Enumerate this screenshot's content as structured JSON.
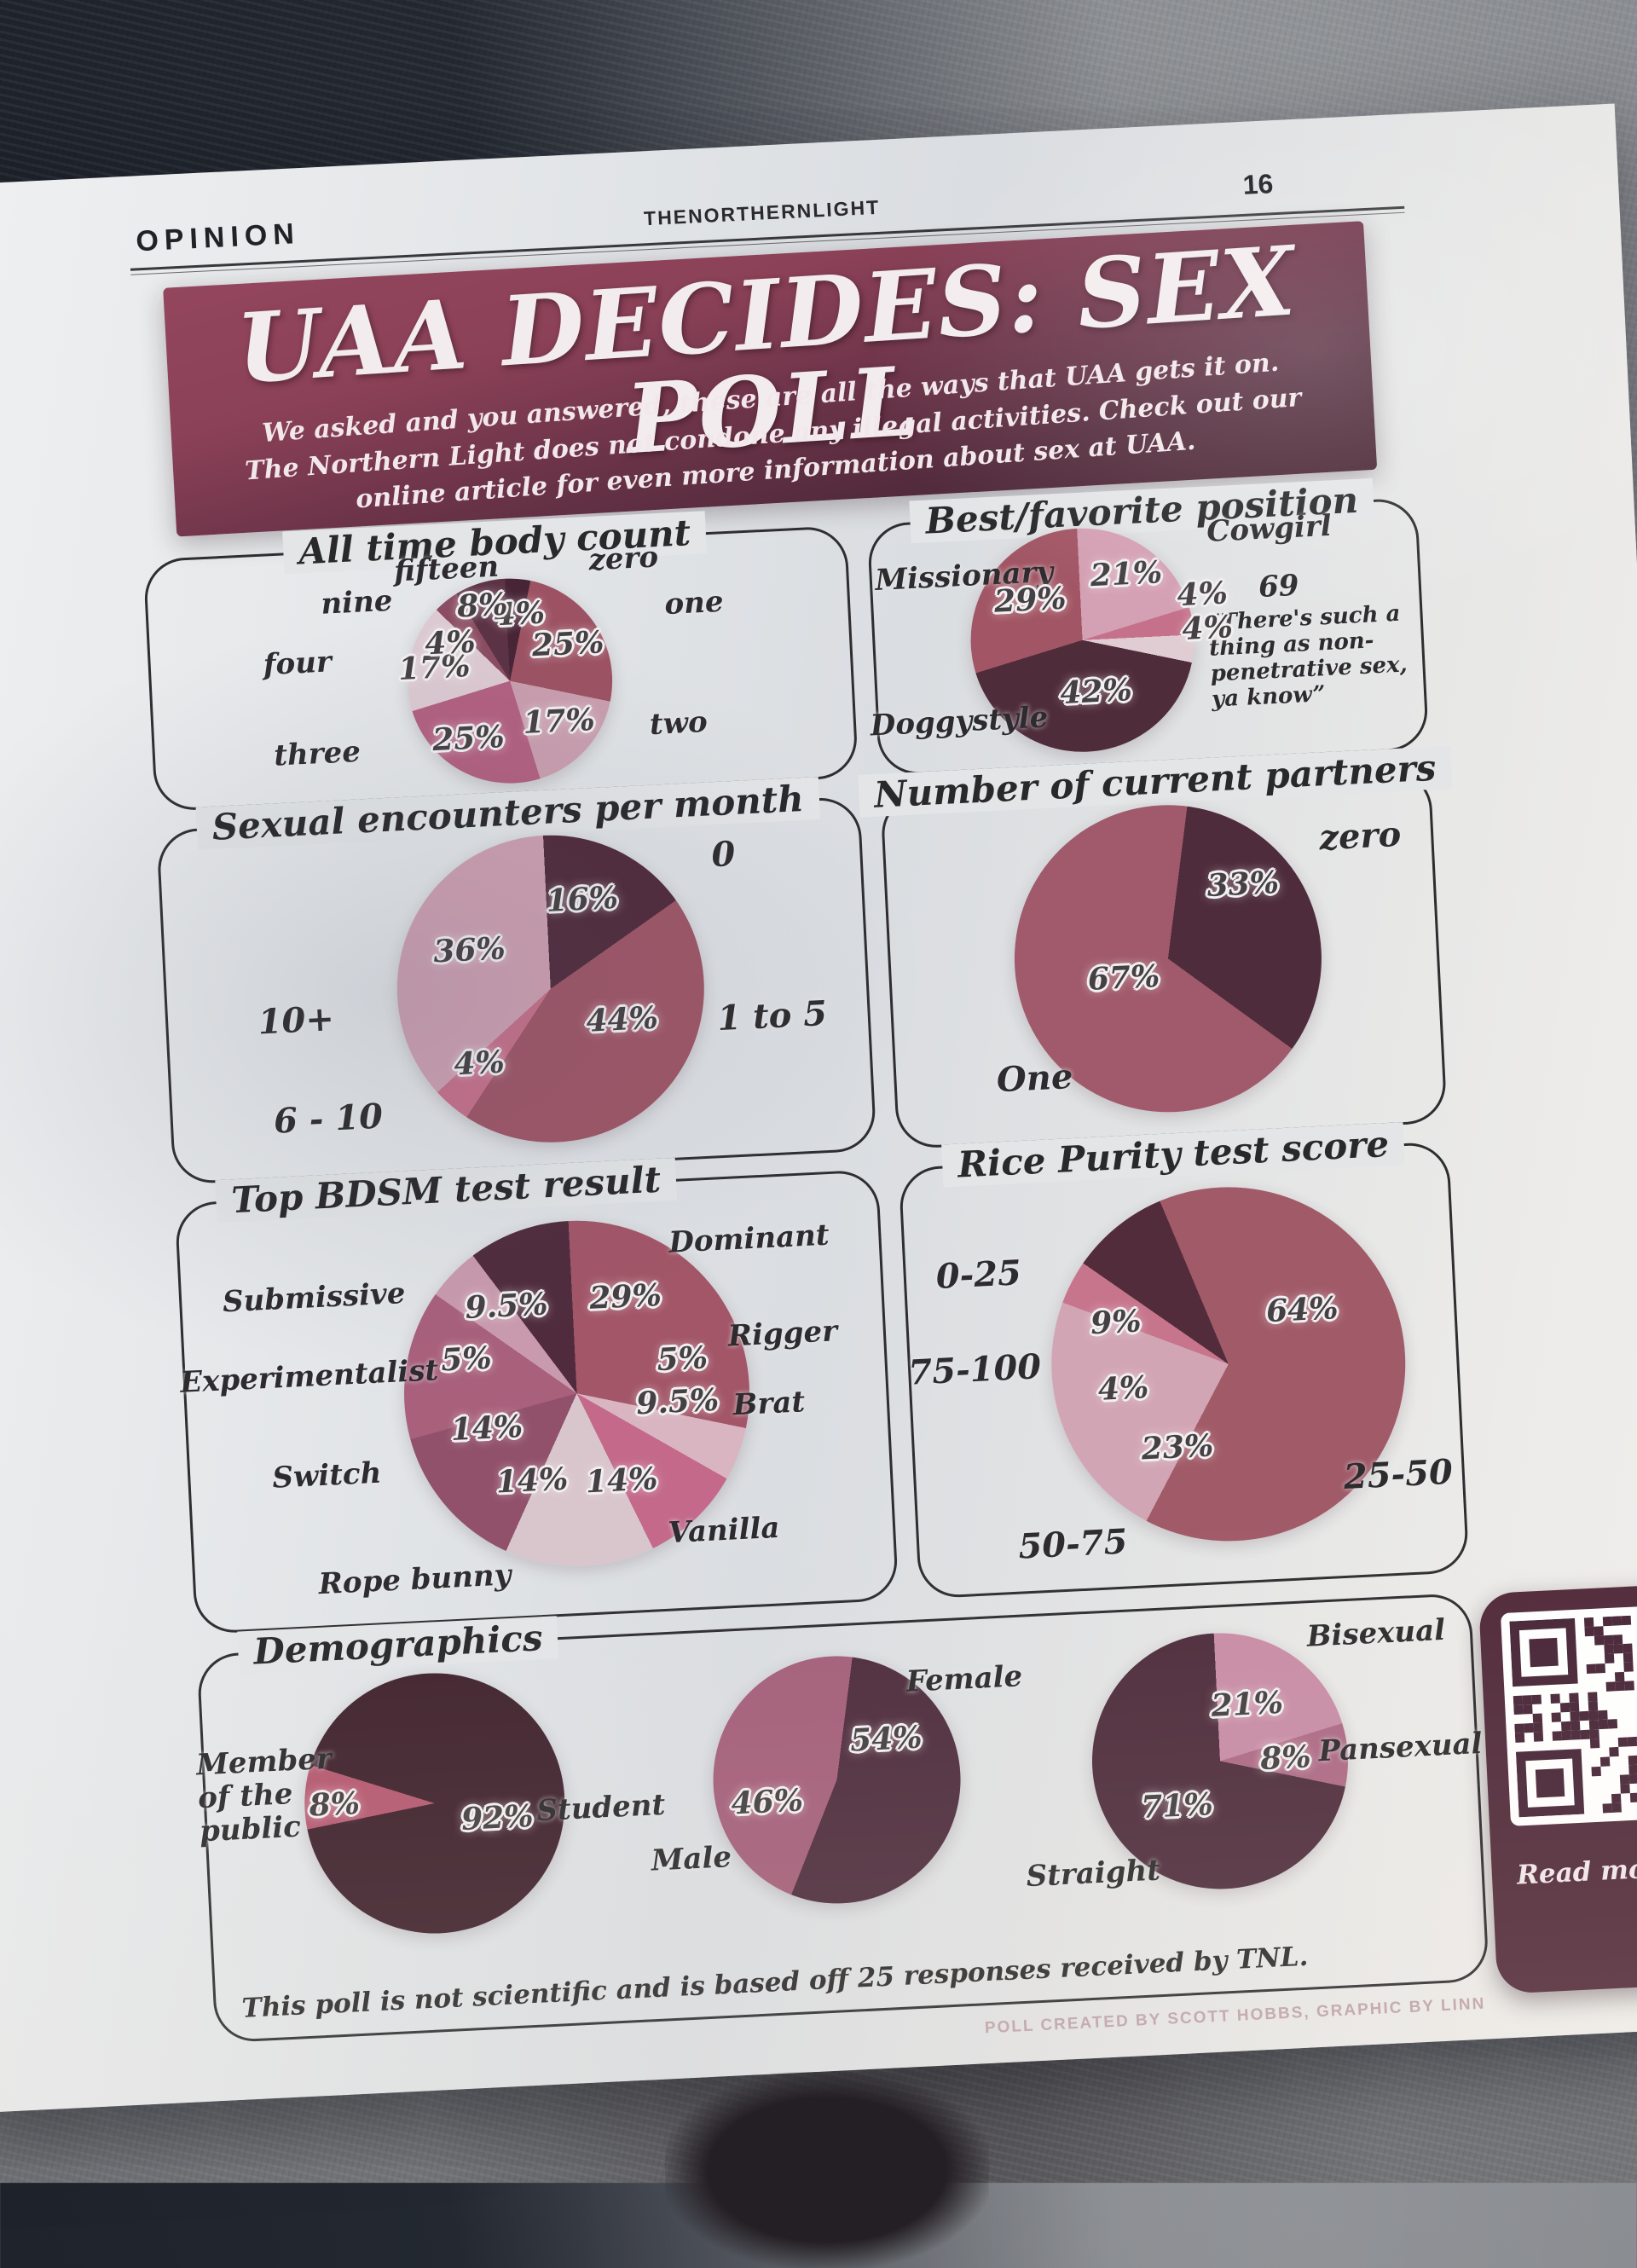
{
  "page": {
    "section": "OPINION",
    "masthead": "THENORTHERNLIGHT",
    "page_number": "16"
  },
  "banner": {
    "title": "UAA DECIDES: SEX POLL",
    "subtitle_lines": [
      "We asked and you answered, these are all the ways that UAA gets it on.",
      "The Northern Light does not condone any illegal activities. Check out our",
      "online article for even more information about sex at UAA."
    ]
  },
  "panel_titles": {
    "demographics": "Demographics"
  },
  "footer": {
    "disclaimer": "This poll is not scientific and is based off 25 responses received by TNL.",
    "credit": "POLL CREATED BY SCOTT HOBBS, GRAPHIC BY LINN",
    "qr_caption": "Read more on"
  },
  "chart_data": [
    {
      "id": "body_count",
      "type": "pie",
      "title": "All time body count",
      "labels": [
        "zero",
        "one",
        "two",
        "three",
        "four",
        "nine",
        "fifteen"
      ],
      "values": [
        4,
        25,
        17,
        25,
        17,
        4,
        8
      ],
      "colors": [
        "#472536",
        "#9c5263",
        "#c99eae",
        "#b26080",
        "#dcc9d1",
        "#8a4c61",
        "#5c3245"
      ]
    },
    {
      "id": "position",
      "type": "pie",
      "title": "Best/favorite position",
      "labels": [
        "Cowgirl",
        "69",
        "“There's such a thing as non-penetrative sex, ya know”",
        "Doggystyle",
        "Missionary"
      ],
      "values": [
        21,
        4,
        4,
        42,
        29
      ],
      "colors": [
        "#d4a0b3",
        "#c5718b",
        "#e0cdd4",
        "#4f2c3a",
        "#a25665"
      ]
    },
    {
      "id": "encounters",
      "type": "pie",
      "title": "Sexual encounters per month",
      "labels": [
        "0",
        "1 to 5",
        "6 - 10",
        "10+"
      ],
      "values": [
        16,
        44,
        4,
        36
      ],
      "colors": [
        "#4f2a3b",
        "#9e5566",
        "#c66f8a",
        "#cd9fb1"
      ]
    },
    {
      "id": "partners",
      "type": "pie",
      "title": "Number of current partners",
      "labels": [
        "zero",
        "One"
      ],
      "values": [
        33,
        67
      ],
      "colors": [
        "#4e2c3c",
        "#a05a6b"
      ]
    },
    {
      "id": "bdsm",
      "type": "pie",
      "title": "Top BDSM test result",
      "labels": [
        "Dominant",
        "Rigger",
        "Brat",
        "Vanilla",
        "Rope bunny",
        "Switch",
        "Experimentalist",
        "Submissive"
      ],
      "values": [
        29,
        5,
        9.5,
        14,
        14,
        14,
        5,
        9.5
      ],
      "colors": [
        "#a25668",
        "#d9b4c1",
        "#c4698a",
        "#d9c6cd",
        "#91516b",
        "#a8607b",
        "#c99aad",
        "#4f2b3d"
      ]
    },
    {
      "id": "rice",
      "type": "pie",
      "title": "Rice Purity test score",
      "labels": [
        "25-50",
        "50-75",
        "75-100",
        "0-25"
      ],
      "values": [
        64,
        23,
        4,
        9
      ],
      "colors": [
        "#a15a68",
        "#d2a5b5",
        "#c7758c",
        "#532c3c"
      ]
    },
    {
      "id": "demo_member",
      "type": "pie",
      "labels": [
        "Student",
        "Member of the public"
      ],
      "values": [
        92,
        8
      ],
      "colors": [
        "#41242f",
        "#b55a72"
      ]
    },
    {
      "id": "demo_gender",
      "type": "pie",
      "labels": [
        "Female",
        "Male"
      ],
      "values": [
        54,
        46
      ],
      "colors": [
        "#4f2e3e",
        "#a4607a"
      ]
    },
    {
      "id": "demo_orientation",
      "type": "pie",
      "labels": [
        "Bisexual",
        "Pansexual",
        "Straight"
      ],
      "values": [
        21,
        8,
        71
      ],
      "colors": [
        "#c88da6",
        "#ad6a85",
        "#4f2e3d"
      ]
    }
  ]
}
